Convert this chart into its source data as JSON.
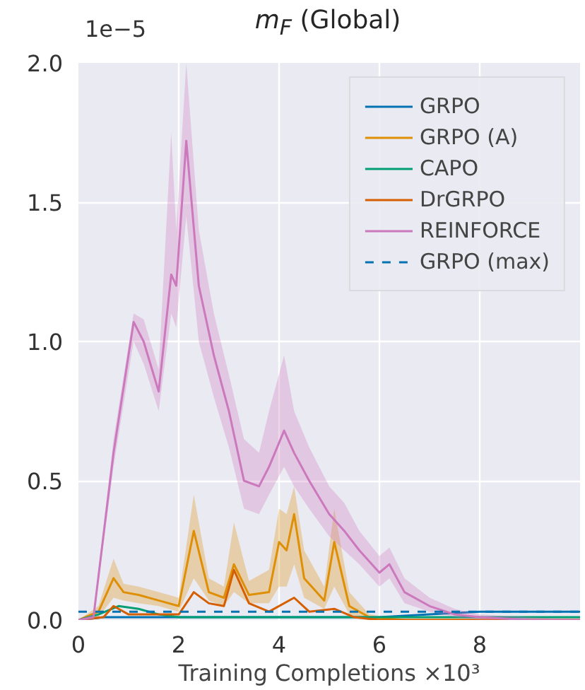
{
  "chart_data": {
    "type": "line",
    "title": "m$_{F}$ (Global)",
    "xlabel": "Training Completions ×10³",
    "annotations": [
      "1e−5"
    ],
    "xlim": [
      0,
      10
    ],
    "ylim": [
      0,
      2.0
    ],
    "xticks": [
      0,
      2,
      4,
      6,
      8
    ],
    "yticks": [
      {
        "value": 0,
        "label": "0.0"
      },
      0.5,
      {
        "value": 1,
        "label": "1.0"
      },
      1.5,
      {
        "value": 2,
        "label": "2.0"
      }
    ],
    "grid": true,
    "legend": "top right",
    "series": [
      {
        "name": "GRPO",
        "color": "#0173b2",
        "x": [
          0,
          0.5,
          1,
          2,
          3,
          4,
          5,
          6,
          7,
          8,
          9,
          10
        ],
        "values": [
          0,
          0.01,
          0.01,
          0.01,
          0.01,
          0.01,
          0.01,
          0.01,
          0.02,
          0.03,
          0.03,
          0.03
        ]
      },
      {
        "name": "GRPO (A)",
        "color": "#de8f05",
        "x": [
          0,
          0.4,
          0.7,
          0.9,
          1.2,
          1.6,
          2.0,
          2.3,
          2.6,
          2.9,
          3.1,
          3.4,
          3.8,
          4.0,
          4.15,
          4.3,
          4.5,
          4.9,
          5.1,
          5.4,
          5.8,
          6.5,
          8,
          10
        ],
        "values": [
          0,
          0.03,
          0.15,
          0.1,
          0.09,
          0.07,
          0.05,
          0.32,
          0.1,
          0.08,
          0.2,
          0.09,
          0.1,
          0.28,
          0.25,
          0.38,
          0.15,
          0.07,
          0.28,
          0.05,
          0.01,
          0,
          0,
          0
        ],
        "lower": [
          0,
          0.01,
          0.08,
          0.07,
          0.06,
          0.05,
          0.03,
          0.15,
          0.07,
          0.05,
          0.1,
          0.06,
          0.06,
          0.12,
          0.12,
          0.2,
          0.08,
          0.04,
          0.12,
          0.02,
          0,
          0,
          0,
          0
        ],
        "upper": [
          0,
          0.05,
          0.22,
          0.13,
          0.12,
          0.1,
          0.08,
          0.45,
          0.15,
          0.12,
          0.35,
          0.14,
          0.18,
          0.4,
          0.38,
          0.48,
          0.25,
          0.12,
          0.4,
          0.1,
          0.02,
          0,
          0,
          0
        ]
      },
      {
        "name": "CAPO",
        "color": "#029e73",
        "x": [
          0,
          0.4,
          0.8,
          1.2,
          1.6,
          2,
          4,
          6,
          8,
          10
        ],
        "values": [
          0,
          0.02,
          0.05,
          0.04,
          0.02,
          0.01,
          0.01,
          0.01,
          0.01,
          0.01
        ]
      },
      {
        "name": "DrGRPO",
        "color": "#d55e00",
        "x": [
          0,
          0.5,
          0.7,
          1.0,
          1.6,
          2.0,
          2.3,
          2.6,
          2.9,
          3.1,
          3.4,
          3.8,
          4.3,
          4.6,
          5.1,
          5.5,
          6,
          8,
          10
        ],
        "values": [
          0,
          0.01,
          0.05,
          0.02,
          0.02,
          0.02,
          0.1,
          0.06,
          0.05,
          0.18,
          0.06,
          0.03,
          0.08,
          0.03,
          0.04,
          0.01,
          0,
          0,
          0
        ]
      },
      {
        "name": "REINFORCE",
        "color": "#cc78bc",
        "x": [
          0,
          0.3,
          0.7,
          1.1,
          1.3,
          1.6,
          1.85,
          1.95,
          2.15,
          2.4,
          2.7,
          3.0,
          3.3,
          3.6,
          3.8,
          4.1,
          4.3,
          4.6,
          5.0,
          5.3,
          5.6,
          6.0,
          6.2,
          6.5,
          7.0,
          7.5,
          8,
          9,
          10
        ],
        "values": [
          0,
          0.01,
          0.6,
          1.07,
          1.0,
          0.82,
          1.24,
          1.2,
          1.72,
          1.2,
          0.95,
          0.75,
          0.5,
          0.48,
          0.55,
          0.68,
          0.6,
          0.5,
          0.38,
          0.32,
          0.25,
          0.17,
          0.2,
          0.1,
          0.05,
          0.02,
          0.01,
          0,
          0
        ],
        "lower": [
          0,
          0.0,
          0.55,
          1.0,
          0.92,
          0.75,
          1.1,
          1.05,
          1.45,
          1.0,
          0.8,
          0.62,
          0.4,
          0.38,
          0.45,
          0.55,
          0.48,
          0.4,
          0.3,
          0.25,
          0.2,
          0.12,
          0.15,
          0.06,
          0.03,
          0.01,
          0,
          0,
          0
        ],
        "upper": [
          0,
          0.02,
          0.65,
          1.1,
          1.08,
          0.9,
          1.75,
          1.4,
          2.0,
          1.4,
          1.1,
          0.88,
          0.65,
          0.6,
          0.75,
          0.95,
          0.75,
          0.62,
          0.48,
          0.42,
          0.32,
          0.23,
          0.26,
          0.15,
          0.08,
          0.04,
          0.02,
          0.01,
          0
        ]
      },
      {
        "name": "GRPO (max)",
        "color": "#0173b2",
        "line_style": "dashed",
        "x": [
          0,
          10
        ],
        "values": [
          0.03,
          0.03
        ]
      }
    ]
  }
}
